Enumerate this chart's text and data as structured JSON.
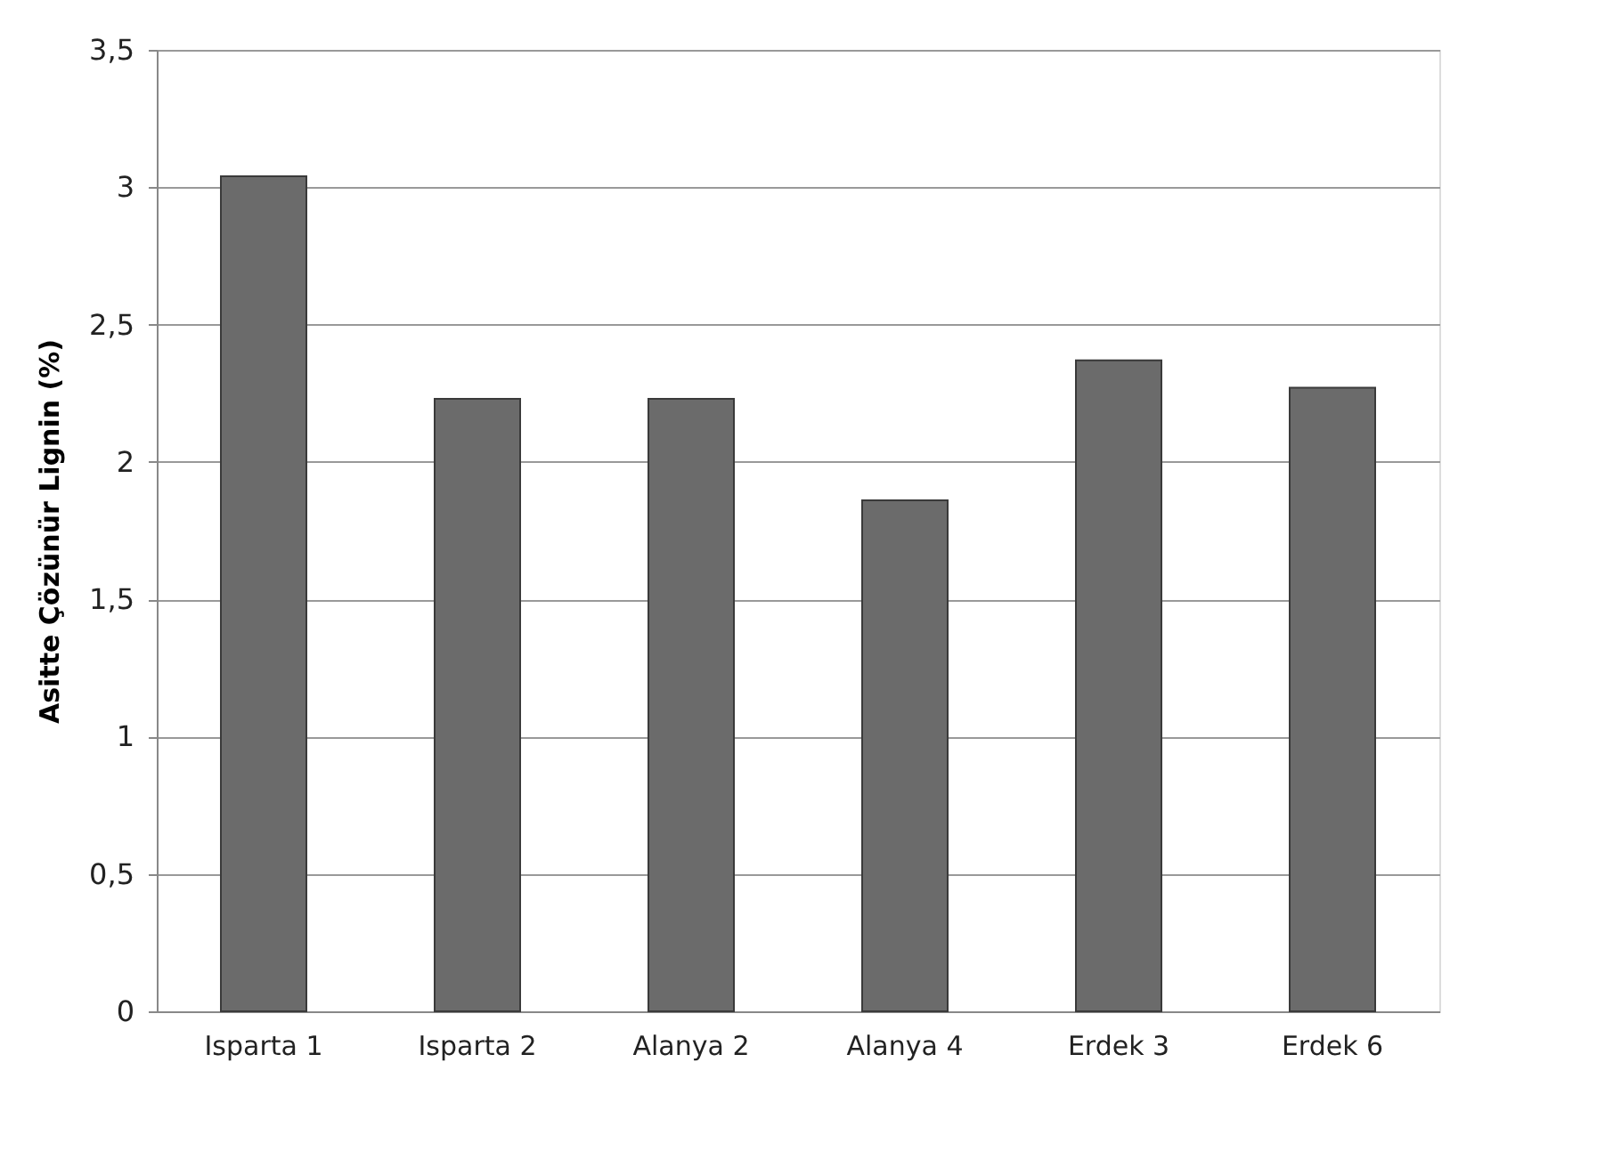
{
  "chart_data": {
    "type": "bar",
    "ylabel": "Asitte Çözünür Lignin (%)",
    "categories": [
      "Isparta 1",
      "Isparta 2",
      "Alanya 2",
      "Alanya 4",
      "Erdek 3",
      "Erdek 6"
    ],
    "values": [
      3.04,
      2.23,
      2.23,
      1.86,
      2.37,
      2.27
    ],
    "color": "#6b6b6b",
    "ylim": [
      0,
      3.5
    ],
    "yticks": [
      0,
      {
        "value": 0.5,
        "label": "0,5"
      },
      1,
      {
        "value": 1.5,
        "label": "1,5"
      },
      2,
      {
        "value": 2.5,
        "label": "2,5"
      },
      3,
      {
        "value": 3.5,
        "label": "3,5"
      }
    ],
    "grid": "y"
  }
}
